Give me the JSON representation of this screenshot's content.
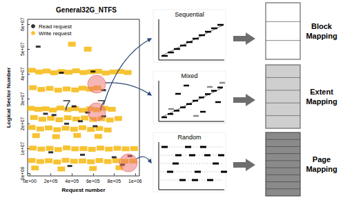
{
  "chart_data": {
    "type": "scatter",
    "title": "General32G_NTFS",
    "x_label": "Request number",
    "y_label": "Logical Sector Number",
    "xlim": [
      -20000,
      1040000
    ],
    "xticks": [
      {
        "value": 0,
        "label": "0e+00"
      },
      {
        "value": 200000,
        "label": "2e+05"
      },
      {
        "value": 400000,
        "label": "4e+05"
      },
      {
        "value": 600000,
        "label": "6e+05"
      },
      {
        "value": 800000,
        "label": "8e+05"
      },
      {
        "value": 1000000,
        "label": "1e+06"
      }
    ],
    "ylim": [
      -1000000,
      62000000
    ],
    "yticks": [
      {
        "value": 0,
        "label": "0e+00"
      },
      {
        "value": 10000000,
        "label": "1e+07"
      },
      {
        "value": 20000000,
        "label": "2e+07"
      },
      {
        "value": 30000000,
        "label": "3e+07"
      },
      {
        "value": 40000000,
        "label": "4e+07"
      },
      {
        "value": 50000000,
        "label": "5e+07"
      },
      {
        "value": 60000000,
        "label": "6e+07"
      }
    ],
    "grid": false,
    "legend": "top-left",
    "series": [
      {
        "name": "Read request",
        "color": "#000000",
        "marker": "rect",
        "values": [
          [
            80000,
            51000000
          ],
          [
            300000,
            40500000
          ],
          [
            600000,
            41000000
          ],
          [
            150000,
            24000000
          ],
          [
            230000,
            23500000
          ],
          [
            350000,
            20000000
          ],
          [
            420000,
            27000000
          ],
          [
            480000,
            21000000
          ],
          [
            550000,
            24500000
          ],
          [
            620000,
            19000000
          ],
          [
            700000,
            23000000
          ],
          [
            200000,
            8500000
          ],
          [
            500000,
            7500000
          ],
          [
            800000,
            6500000
          ],
          [
            950000,
            7000000
          ],
          [
            880000,
            3500000
          ],
          [
            380000,
            3000000
          ],
          [
            700000,
            33500000
          ]
        ]
      },
      {
        "name": "Write request",
        "color": "#F5B400",
        "marker": "rect",
        "values": [
          [
            20000,
            41500000
          ],
          [
            90000,
            40800000
          ],
          [
            160000,
            41200000
          ],
          [
            230000,
            40500000
          ],
          [
            300000,
            41000000
          ],
          [
            370000,
            40700000
          ],
          [
            440000,
            41300000
          ],
          [
            510000,
            40600000
          ],
          [
            580000,
            40900000
          ],
          [
            650000,
            41100000
          ],
          [
            720000,
            40400000
          ],
          [
            790000,
            40800000
          ],
          [
            860000,
            41000000
          ],
          [
            930000,
            40600000
          ],
          [
            30000,
            34500000
          ],
          [
            110000,
            33800000
          ],
          [
            190000,
            34200000
          ],
          [
            270000,
            33500000
          ],
          [
            350000,
            34000000
          ],
          [
            430000,
            33600000
          ],
          [
            500000,
            34300000
          ],
          [
            570000,
            33900000
          ],
          [
            640000,
            34400000
          ],
          [
            10000,
            26200000
          ],
          [
            80000,
            25800000
          ],
          [
            150000,
            26000000
          ],
          [
            220000,
            25500000
          ],
          [
            290000,
            26300000
          ],
          [
            360000,
            25700000
          ],
          [
            430000,
            26100000
          ],
          [
            500000,
            25400000
          ],
          [
            570000,
            26000000
          ],
          [
            640000,
            25600000
          ],
          [
            710000,
            26200000
          ],
          [
            780000,
            25800000
          ],
          [
            40000,
            22500000
          ],
          [
            120000,
            21800000
          ],
          [
            200000,
            22200000
          ],
          [
            280000,
            21600000
          ],
          [
            360000,
            22400000
          ],
          [
            440000,
            21900000
          ],
          [
            520000,
            22300000
          ],
          [
            600000,
            21700000
          ],
          [
            680000,
            22000000
          ],
          [
            760000,
            21500000
          ],
          [
            840000,
            22100000
          ],
          [
            20000,
            18500000
          ],
          [
            100000,
            17900000
          ],
          [
            180000,
            18300000
          ],
          [
            260000,
            17600000
          ],
          [
            340000,
            18200000
          ],
          [
            420000,
            17800000
          ],
          [
            500000,
            18400000
          ],
          [
            580000,
            17700000
          ],
          [
            660000,
            18100000
          ],
          [
            740000,
            17500000
          ],
          [
            60000,
            15200000
          ],
          [
            250000,
            14800000
          ],
          [
            450000,
            15300000
          ],
          [
            650000,
            14900000
          ],
          [
            30000,
            10200000
          ],
          [
            110000,
            9800000
          ],
          [
            190000,
            10100000
          ],
          [
            270000,
            9600000
          ],
          [
            350000,
            10300000
          ],
          [
            430000,
            9900000
          ],
          [
            510000,
            10000000
          ],
          [
            590000,
            9700000
          ],
          [
            670000,
            10200000
          ],
          [
            750000,
            9800000
          ],
          [
            830000,
            10100000
          ],
          [
            910000,
            9900000
          ],
          [
            990000,
            10000000
          ],
          [
            20000,
            5200000
          ],
          [
            100000,
            4800000
          ],
          [
            180000,
            5100000
          ],
          [
            260000,
            4600000
          ],
          [
            340000,
            5300000
          ],
          [
            420000,
            4900000
          ],
          [
            500000,
            5000000
          ],
          [
            580000,
            4700000
          ],
          [
            660000,
            5200000
          ],
          [
            740000,
            4800000
          ],
          [
            820000,
            5100000
          ],
          [
            900000,
            4900000
          ],
          [
            980000,
            5000000
          ],
          [
            50000,
            2200000
          ],
          [
            300000,
            1800000
          ],
          [
            600000,
            2000000
          ],
          [
            850000,
            2300000
          ],
          [
            400000,
            52000000
          ],
          [
            550000,
            50000000
          ]
        ]
      }
    ],
    "annotations": [
      {
        "text": "7",
        "x": 350000,
        "y": 27500000
      },
      {
        "text": "7",
        "x": 680000,
        "y": 27500000
      }
    ]
  },
  "diagram": {
    "patterns": [
      {
        "label": "Sequential",
        "mapping": [
          "Block",
          "Mapping"
        ]
      },
      {
        "label": "Mixed",
        "mapping": [
          "Extent",
          "Mapping"
        ]
      },
      {
        "label": "Random",
        "mapping": [
          "Page",
          "Mapping"
        ]
      }
    ]
  }
}
